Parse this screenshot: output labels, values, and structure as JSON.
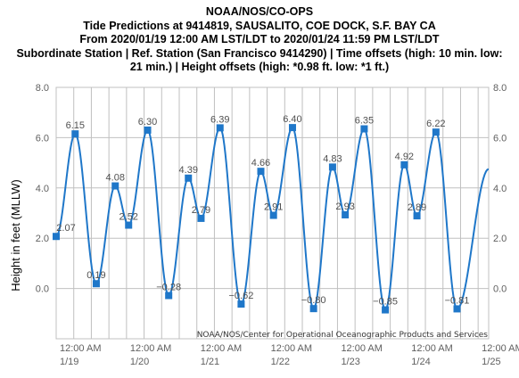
{
  "chart_data": {
    "type": "line",
    "title_lines": [
      "NOAA/NOS/CO-OPS",
      "Tide Predictions at 9414819, SAUSALITO, COE DOCK, S.F. BAY CA",
      "From 2020/01/19 12:00 AM LST/LDT to 2020/01/24 11:59 PM LST/LDT",
      "Subordinate Station | Ref. Station (San Francisco 9414290) | Time offsets (high: 10 min. low:",
      "21 min.) | Height offsets (high: *0.98 ft. low: *1 ft.)"
    ],
    "ylabel": "Height in feet (MLLW)",
    "ylim": [
      -2.0,
      8.0
    ],
    "yticks": [
      "8.0",
      "6.0",
      "4.0",
      "2.0",
      "0.0"
    ],
    "xlim_days": [
      0,
      6.15
    ],
    "xticks": [
      {
        "day": 0,
        "time": "12:00 AM",
        "date": "1/19"
      },
      {
        "day": 1,
        "time": "12:00 AM",
        "date": "1/20"
      },
      {
        "day": 2,
        "time": "12:00 AM",
        "date": "1/21"
      },
      {
        "day": 3,
        "time": "12:00 AM",
        "date": "1/22"
      },
      {
        "day": 4,
        "time": "12:00 AM",
        "date": "1/23"
      },
      {
        "day": 5,
        "time": "12:00 AM",
        "date": "1/24"
      },
      {
        "day": 6,
        "time": "12:00 AM",
        "date": "1/25"
      }
    ],
    "extrema": [
      {
        "day": 0.0,
        "value": 2.07,
        "label": "2.07"
      },
      {
        "day": 0.27,
        "value": 6.15,
        "label": "6.15"
      },
      {
        "day": 0.57,
        "value": 0.19,
        "label": "0.19"
      },
      {
        "day": 0.84,
        "value": 4.08,
        "label": "4.08"
      },
      {
        "day": 1.03,
        "value": 2.52,
        "label": "2.52"
      },
      {
        "day": 1.3,
        "value": 6.3,
        "label": "6.30"
      },
      {
        "day": 1.6,
        "value": -0.28,
        "label": "−0.28"
      },
      {
        "day": 1.88,
        "value": 4.39,
        "label": "4.39"
      },
      {
        "day": 2.06,
        "value": 2.79,
        "label": "2.79"
      },
      {
        "day": 2.33,
        "value": 6.39,
        "label": "6.39"
      },
      {
        "day": 2.63,
        "value": -0.62,
        "label": "−0.62"
      },
      {
        "day": 2.91,
        "value": 4.66,
        "label": "4.66"
      },
      {
        "day": 3.09,
        "value": 2.91,
        "label": "2.91"
      },
      {
        "day": 3.36,
        "value": 6.4,
        "label": "6.40"
      },
      {
        "day": 3.66,
        "value": -0.8,
        "label": "−0.80"
      },
      {
        "day": 3.93,
        "value": 4.83,
        "label": "4.83"
      },
      {
        "day": 4.11,
        "value": 2.93,
        "label": "2.93"
      },
      {
        "day": 4.38,
        "value": 6.35,
        "label": "6.35"
      },
      {
        "day": 4.68,
        "value": -0.85,
        "label": "−0.85"
      },
      {
        "day": 4.95,
        "value": 4.92,
        "label": "4.92"
      },
      {
        "day": 5.13,
        "value": 2.89,
        "label": "2.89"
      },
      {
        "day": 5.4,
        "value": 6.22,
        "label": "6.22"
      },
      {
        "day": 5.7,
        "value": -0.81,
        "label": "−0.81"
      },
      {
        "day": 6.15,
        "value": 4.75,
        "label": ""
      }
    ],
    "credit": "NOAA/NOS/Center for Operational Oceanographic Products and Services",
    "grid": true,
    "line_color": "#1f77c9",
    "grid_color": "#c0c0c0"
  }
}
